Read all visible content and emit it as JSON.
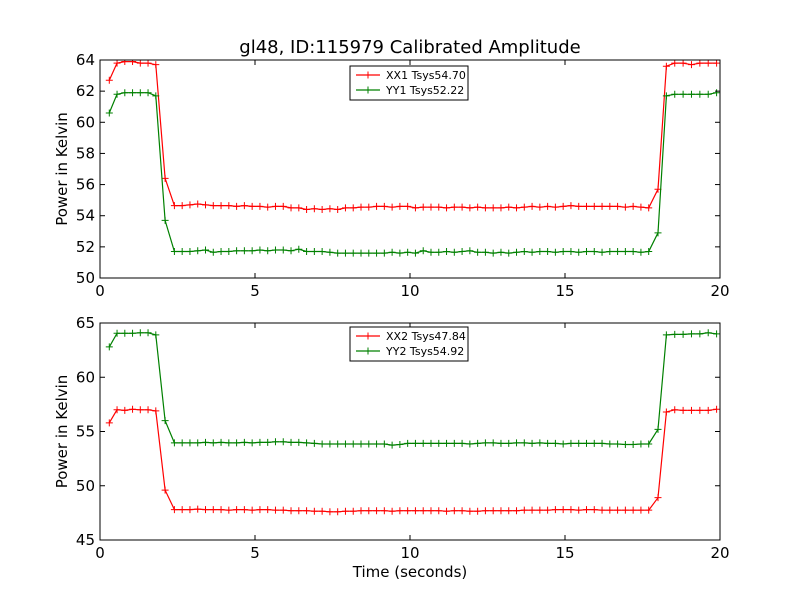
{
  "title": "gl48, ID:115979 Calibrated Amplitude",
  "colors": {
    "red": "#ff0000",
    "green": "#008000"
  },
  "chart_data": [
    {
      "type": "line",
      "title": "gl48, ID:115979 Calibrated Amplitude",
      "xlabel": "",
      "ylabel": "Power in Kelvin",
      "xlim": [
        0,
        20
      ],
      "ylim": [
        50,
        64
      ],
      "xticks": [
        0,
        5,
        10,
        15,
        20
      ],
      "yticks": [
        50,
        52,
        54,
        56,
        58,
        60,
        62,
        64
      ],
      "grid": false,
      "legend": "top-center",
      "series": [
        {
          "name": "XX1 Tsys54.70",
          "color": "#ff0000",
          "shape": "step",
          "pre": [
            62.7,
            63.8,
            63.9,
            63.9,
            63.8,
            63.8,
            63.7
          ],
          "transition": [
            56.4
          ],
          "plateau": [
            54.65,
            54.65,
            54.7,
            54.75,
            54.7,
            54.65,
            54.65,
            54.65,
            54.6,
            54.65,
            54.6,
            54.6,
            54.55,
            54.6,
            54.6,
            54.5,
            54.5,
            54.4,
            54.45,
            54.4,
            54.45,
            54.4,
            54.5,
            54.5,
            54.55,
            54.55,
            54.6,
            54.6,
            54.55,
            54.6,
            54.6,
            54.5,
            54.55,
            54.55,
            54.55,
            54.5,
            54.55,
            54.55,
            54.5,
            54.55,
            54.5,
            54.5,
            54.5,
            54.55,
            54.5,
            54.55,
            54.6,
            54.55,
            54.6,
            54.55,
            54.6,
            54.65,
            54.6,
            54.6,
            54.6,
            54.6,
            54.6,
            54.6,
            54.55,
            54.6,
            54.55,
            54.5
          ],
          "post": [
            55.7,
            63.6,
            63.8,
            63.8,
            63.7,
            63.8,
            63.8,
            63.8
          ]
        },
        {
          "name": "YY1 Tsys52.22",
          "color": "#008000",
          "shape": "step",
          "pre": [
            60.6,
            61.8,
            61.9,
            61.9,
            61.9,
            61.9,
            61.7
          ],
          "transition": [
            53.7
          ],
          "plateau": [
            51.7,
            51.7,
            51.7,
            51.75,
            51.8,
            51.65,
            51.7,
            51.7,
            51.75,
            51.75,
            51.75,
            51.8,
            51.75,
            51.8,
            51.8,
            51.75,
            51.85,
            51.7,
            51.7,
            51.7,
            51.65,
            51.6,
            51.6,
            51.6,
            51.6,
            51.6,
            51.6,
            51.6,
            51.65,
            51.6,
            51.65,
            51.6,
            51.75,
            51.65,
            51.65,
            51.7,
            51.65,
            51.7,
            51.75,
            51.65,
            51.65,
            51.6,
            51.65,
            51.6,
            51.65,
            51.7,
            51.65,
            51.7,
            51.7,
            51.65,
            51.7,
            51.7,
            51.65,
            51.7,
            51.7,
            51.65,
            51.7,
            51.7,
            51.7,
            51.7,
            51.65,
            51.7
          ],
          "post": [
            52.9,
            61.7,
            61.8,
            61.8,
            61.8,
            61.8,
            61.8,
            61.9
          ]
        }
      ]
    },
    {
      "type": "line",
      "title": "",
      "xlabel": "Time (seconds)",
      "ylabel": "Power in Kelvin",
      "xlim": [
        0,
        20
      ],
      "ylim": [
        45,
        65
      ],
      "xticks": [
        0,
        5,
        10,
        15,
        20
      ],
      "yticks": [
        45,
        50,
        55,
        60,
        65
      ],
      "grid": false,
      "legend": "top-center",
      "series": [
        {
          "name": "XX2 Tsys47.84",
          "color": "#ff0000",
          "shape": "step",
          "pre": [
            55.8,
            57.0,
            56.95,
            57.05,
            57.0,
            57.0,
            56.9
          ],
          "transition": [
            49.6
          ],
          "plateau": [
            47.8,
            47.8,
            47.8,
            47.85,
            47.8,
            47.8,
            47.8,
            47.75,
            47.8,
            47.8,
            47.75,
            47.8,
            47.8,
            47.75,
            47.75,
            47.7,
            47.7,
            47.7,
            47.65,
            47.65,
            47.6,
            47.6,
            47.65,
            47.65,
            47.7,
            47.7,
            47.7,
            47.7,
            47.65,
            47.7,
            47.7,
            47.7,
            47.7,
            47.7,
            47.7,
            47.65,
            47.7,
            47.7,
            47.65,
            47.65,
            47.7,
            47.7,
            47.7,
            47.7,
            47.7,
            47.75,
            47.75,
            47.75,
            47.75,
            47.8,
            47.8,
            47.8,
            47.75,
            47.8,
            47.8,
            47.75,
            47.75,
            47.75,
            47.75,
            47.75,
            47.75,
            47.75
          ],
          "post": [
            48.9,
            56.8,
            57.0,
            56.95,
            56.95,
            56.95,
            56.95,
            57.05
          ]
        },
        {
          "name": "YY2 Tsys54.92",
          "color": "#008000",
          "shape": "step",
          "pre": [
            62.8,
            64.05,
            64.05,
            64.05,
            64.1,
            64.1,
            63.9
          ],
          "transition": [
            56.0
          ],
          "plateau": [
            53.95,
            53.95,
            53.95,
            53.95,
            54.0,
            53.95,
            54.0,
            53.95,
            53.95,
            54.0,
            53.95,
            54.0,
            54.0,
            54.05,
            54.05,
            54.0,
            54.0,
            53.95,
            53.9,
            53.85,
            53.85,
            53.85,
            53.85,
            53.85,
            53.85,
            53.85,
            53.85,
            53.85,
            53.75,
            53.8,
            53.9,
            53.9,
            53.9,
            53.9,
            53.9,
            53.9,
            53.9,
            53.9,
            53.85,
            53.9,
            53.95,
            53.95,
            53.9,
            53.9,
            53.95,
            53.95,
            53.9,
            53.95,
            53.9,
            53.9,
            53.85,
            53.9,
            53.9,
            53.9,
            53.9,
            53.9,
            53.85,
            53.85,
            53.8,
            53.8,
            53.85,
            53.85
          ],
          "post": [
            55.2,
            63.9,
            63.95,
            63.95,
            64.0,
            64.0,
            64.1,
            64.0
          ]
        }
      ]
    }
  ]
}
